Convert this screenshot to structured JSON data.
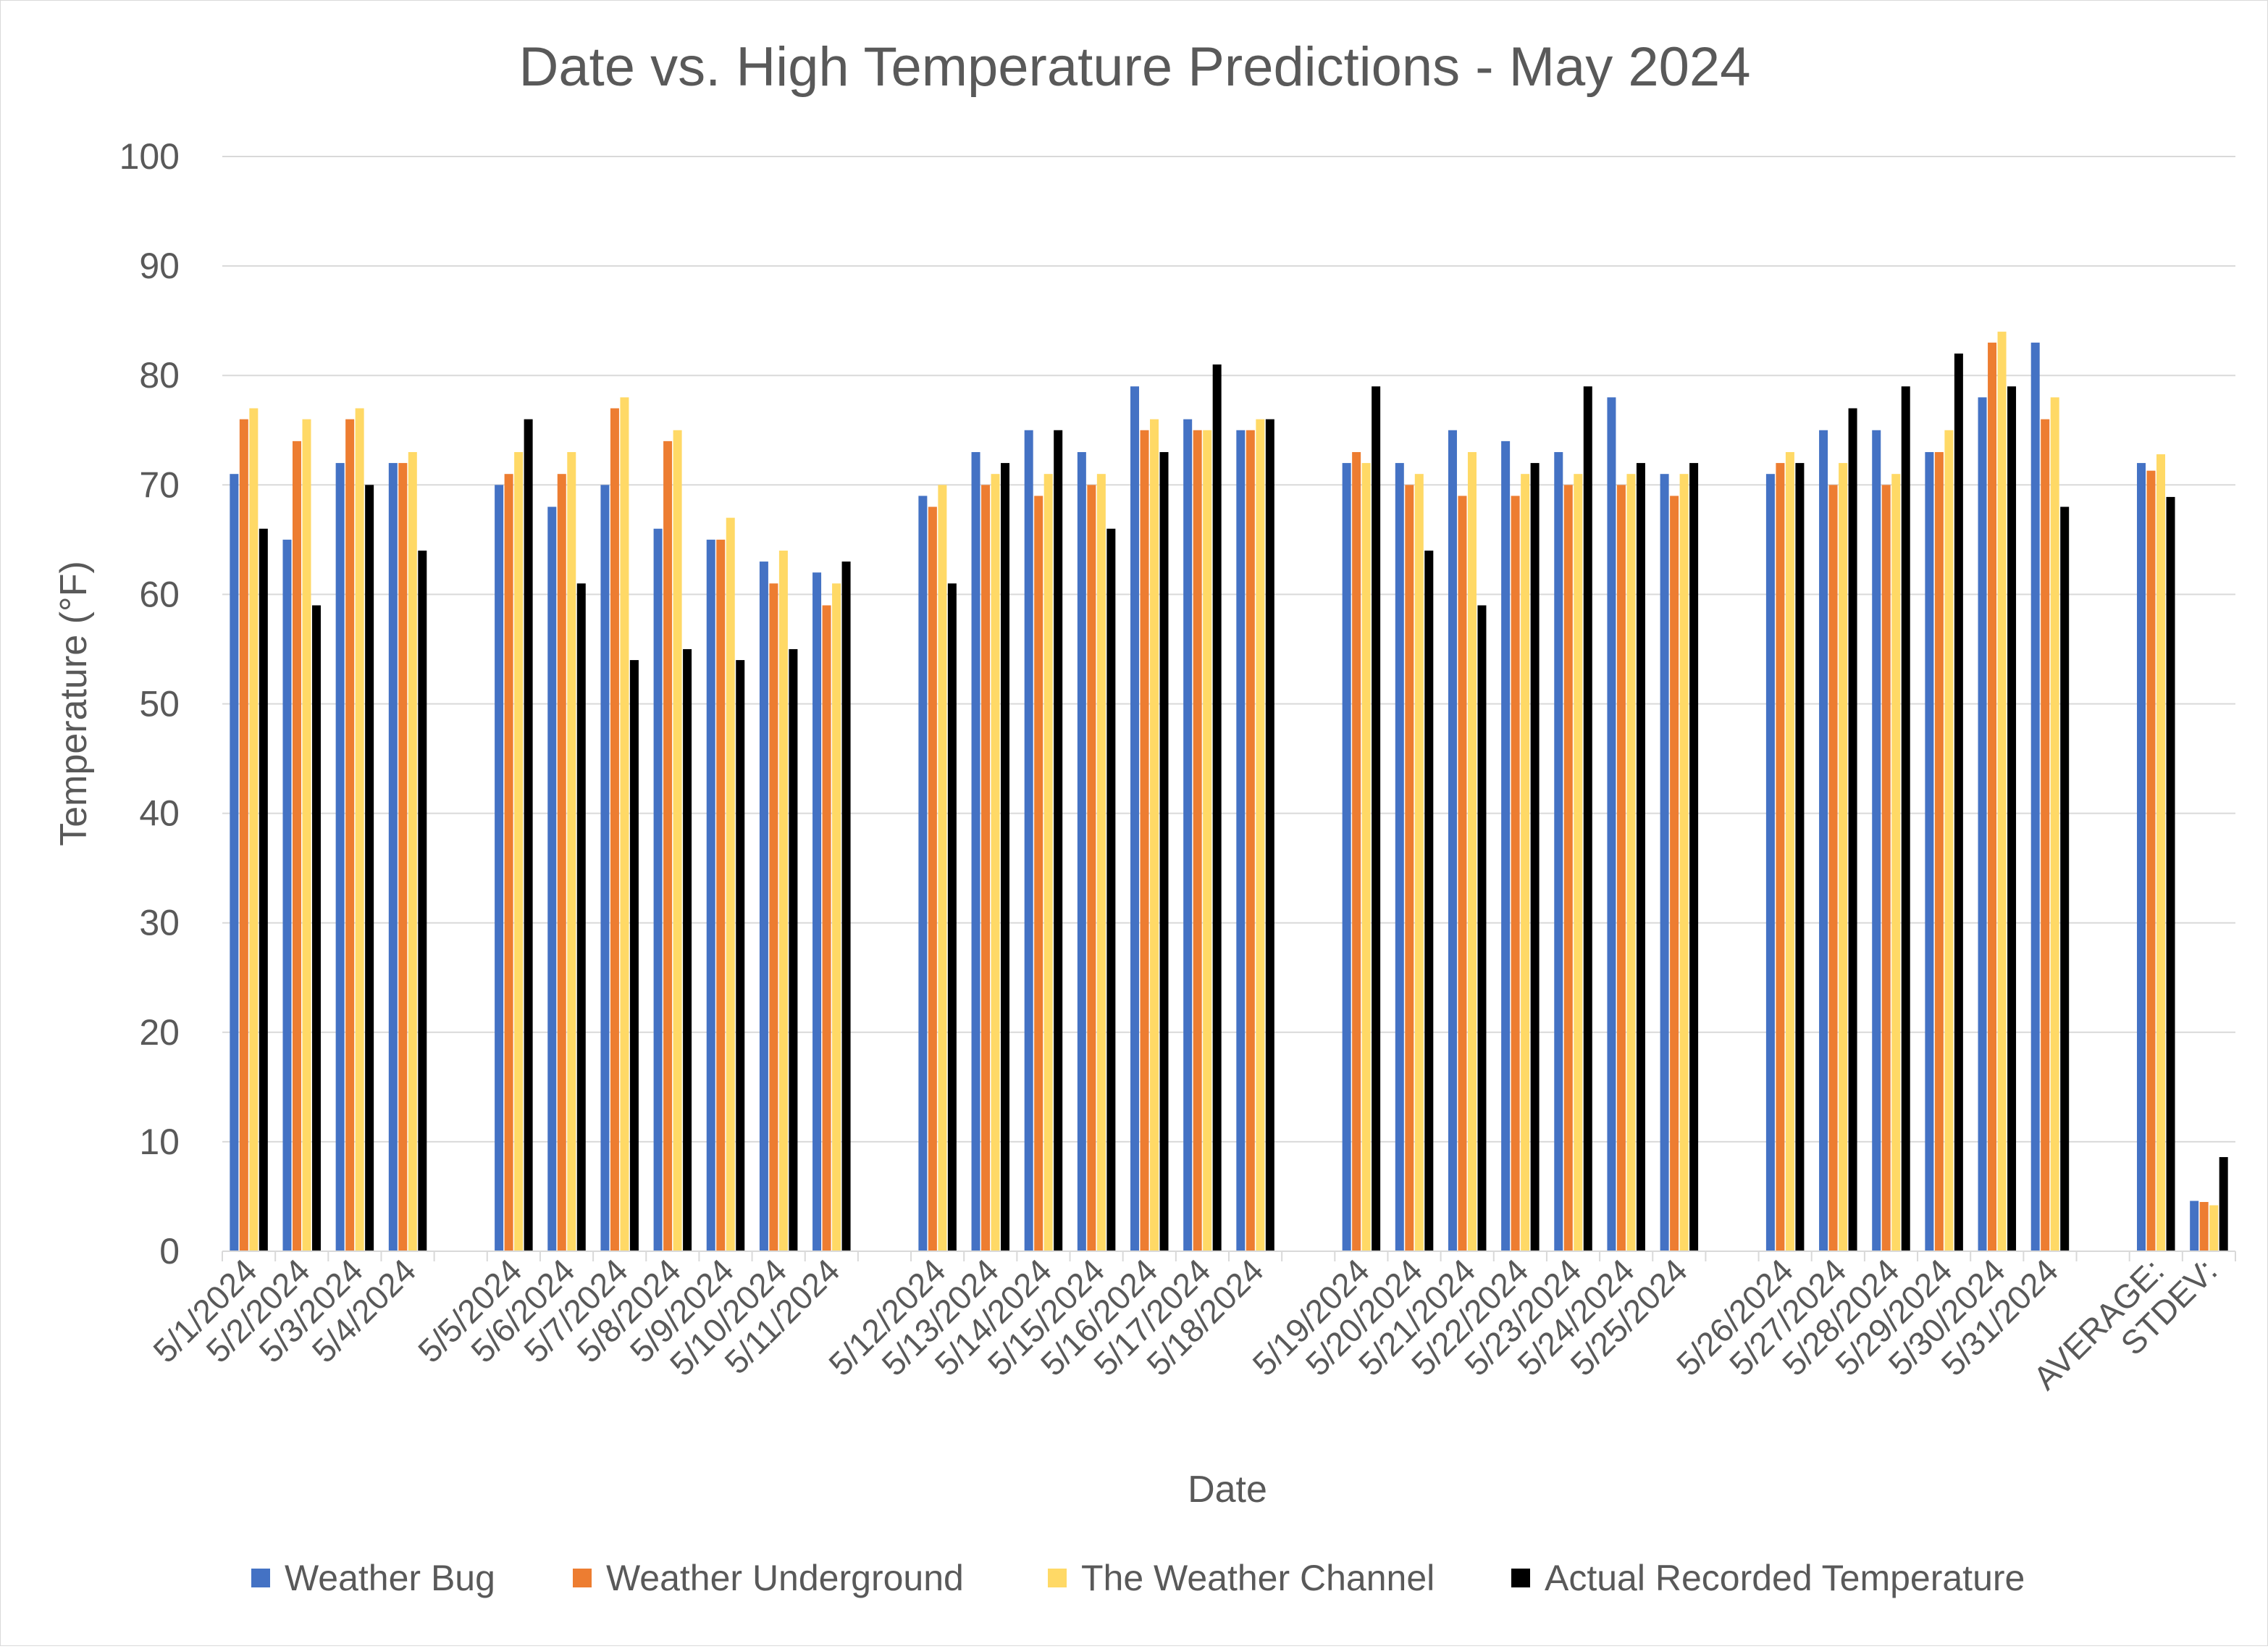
{
  "chart_data": {
    "type": "bar",
    "title": "Date vs. High Temperature Predictions - May 2024",
    "xlabel": "Date",
    "ylabel": "Temperature (°F)",
    "ylim": [
      0,
      100
    ],
    "ytick_step": 10,
    "grid": true,
    "legend_position": "bottom",
    "slots": [
      "5/1/2024",
      "5/2/2024",
      "5/3/2024",
      "5/4/2024",
      null,
      "5/5/2024",
      "5/6/2024",
      "5/7/2024",
      "5/8/2024",
      "5/9/2024",
      "5/10/2024",
      "5/11/2024",
      null,
      "5/12/2024",
      "5/13/2024",
      "5/14/2024",
      "5/15/2024",
      "5/16/2024",
      "5/17/2024",
      "5/18/2024",
      null,
      "5/19/2024",
      "5/20/2024",
      "5/21/2024",
      "5/22/2024",
      "5/23/2024",
      "5/24/2024",
      "5/25/2024",
      null,
      "5/26/2024",
      "5/27/2024",
      "5/28/2024",
      "5/29/2024",
      "5/30/2024",
      "5/31/2024",
      null,
      "AVERAGE:",
      "STDEV:"
    ],
    "series": [
      {
        "name": "Weather Bug",
        "color": "#4472c4",
        "values": [
          71,
          65,
          72,
          72,
          null,
          70,
          68,
          70,
          66,
          65,
          63,
          62,
          null,
          69,
          73,
          75,
          73,
          79,
          76,
          75,
          null,
          72,
          72,
          75,
          74,
          73,
          78,
          71,
          null,
          71,
          75,
          75,
          73,
          78,
          83,
          null,
          72,
          4.6
        ]
      },
      {
        "name": "Weather Underground",
        "color": "#ed7d31",
        "values": [
          76,
          74,
          76,
          72,
          null,
          71,
          71,
          77,
          74,
          65,
          61,
          59,
          null,
          68,
          70,
          69,
          70,
          75,
          75,
          75,
          null,
          73,
          70,
          69,
          69,
          70,
          70,
          69,
          null,
          72,
          70,
          70,
          73,
          83,
          76,
          null,
          71.3,
          4.5
        ]
      },
      {
        "name": "The Weather Channel",
        "color": "#ffd966",
        "values": [
          77,
          76,
          77,
          73,
          null,
          73,
          73,
          78,
          75,
          67,
          64,
          61,
          null,
          70,
          71,
          71,
          71,
          76,
          75,
          76,
          null,
          72,
          71,
          73,
          71,
          71,
          71,
          71,
          null,
          73,
          72,
          71,
          75,
          84,
          78,
          null,
          72.8,
          4.2
        ]
      },
      {
        "name": "Actual Recorded Temperature",
        "color": "#000000",
        "values": [
          66,
          59,
          70,
          64,
          null,
          76,
          61,
          54,
          55,
          54,
          55,
          63,
          null,
          61,
          72,
          75,
          66,
          73,
          81,
          76,
          null,
          79,
          64,
          59,
          72,
          79,
          72,
          72,
          null,
          72,
          77,
          79,
          82,
          79,
          68,
          null,
          68.9,
          8.6
        ]
      }
    ]
  }
}
